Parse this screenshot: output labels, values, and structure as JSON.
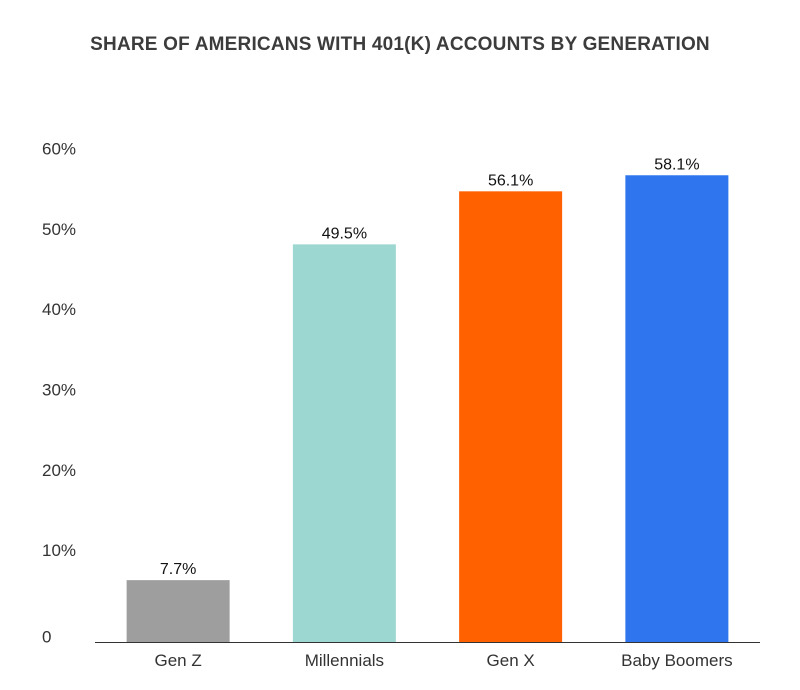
{
  "chart_data": {
    "type": "bar",
    "title": "SHARE OF AMERICANS WITH 401(K) ACCOUNTS BY GENERATION",
    "xlabel": "",
    "ylabel": "",
    "categories": [
      "Gen Z",
      "Millennials",
      "Gen X",
      "Baby Boomers"
    ],
    "values": [
      7.7,
      49.5,
      56.1,
      58.1
    ],
    "value_labels": [
      "7.7%",
      "49.5%",
      "56.1%",
      "58.1%"
    ],
    "colors": [
      "#9e9e9e",
      "#9dd7d1",
      "#ff6100",
      "#2f75ee"
    ],
    "ylim": [
      0,
      60
    ],
    "yticks": [
      0,
      10,
      20,
      30,
      40,
      50,
      60
    ],
    "ytick_labels": [
      "0",
      "10%",
      "20%",
      "30%",
      "40%",
      "50%",
      "60%"
    ],
    "grid": false,
    "legend": "none"
  }
}
